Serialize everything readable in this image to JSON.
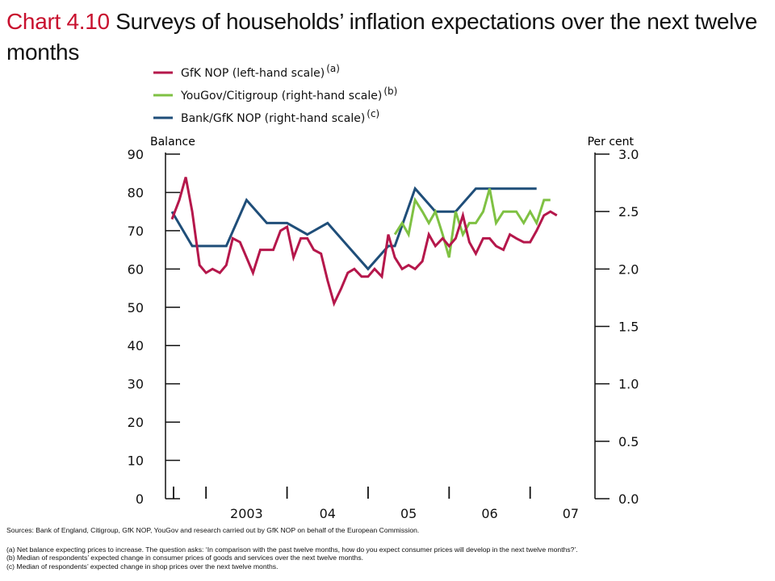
{
  "title": {
    "number": "Chart 4.10",
    "text": "Surveys of households’ inflation expectations over the next twelve months"
  },
  "chart_data": {
    "type": "line",
    "left_axis": {
      "label": "Balance",
      "ylim": [
        0,
        90
      ],
      "ticks": [
        "0",
        "10",
        "20",
        "30",
        "40",
        "50",
        "60",
        "70",
        "80",
        "90"
      ]
    },
    "right_axis": {
      "label": "Per cent",
      "ylim": [
        0,
        3
      ],
      "ticks": [
        "0.0",
        "0.5",
        "1.0",
        "1.5",
        "2.0",
        "2.5",
        "3.0"
      ]
    },
    "x_axis": {
      "tick_labels": [
        "2003",
        "04",
        "05",
        "06",
        "07"
      ],
      "range": [
        2002.5,
        2007.8
      ]
    },
    "grid": false,
    "legend_placement": "top-left",
    "series": [
      {
        "name": "GfK NOP (left-hand scale)",
        "note": "(a)",
        "axis": "left",
        "color": "#b5174b",
        "x": [
          2002.58,
          2002.67,
          2002.75,
          2002.83,
          2002.92,
          2003.0,
          2003.08,
          2003.17,
          2003.25,
          2003.33,
          2003.42,
          2003.5,
          2003.58,
          2003.67,
          2003.75,
          2003.83,
          2003.92,
          2004.0,
          2004.08,
          2004.17,
          2004.25,
          2004.33,
          2004.42,
          2004.5,
          2004.58,
          2004.67,
          2004.75,
          2004.83,
          2004.92,
          2005.0,
          2005.08,
          2005.17,
          2005.25,
          2005.33,
          2005.42,
          2005.5,
          2005.58,
          2005.67,
          2005.75,
          2005.83,
          2005.92,
          2006.0,
          2006.08,
          2006.17,
          2006.25,
          2006.33,
          2006.42,
          2006.5,
          2006.58,
          2006.67,
          2006.75,
          2006.83,
          2006.92,
          2007.0,
          2007.08,
          2007.17,
          2007.25,
          2007.33
        ],
        "values": [
          73,
          78,
          84,
          75,
          61,
          59,
          60,
          59,
          61,
          68,
          67,
          63,
          59,
          65,
          65,
          65,
          70,
          71,
          63,
          68,
          68,
          65,
          64,
          57,
          51,
          55,
          59,
          60,
          58,
          58,
          60,
          58,
          69,
          63,
          60,
          61,
          60,
          62,
          69,
          66,
          68,
          66,
          68,
          74,
          67,
          64,
          68,
          68,
          66,
          65,
          69,
          68,
          67,
          67,
          70,
          74,
          75,
          74
        ]
      },
      {
        "name": "YouGov/Citigroup (right-hand scale)",
        "note": "(b)",
        "axis": "right",
        "color": "#7fc143",
        "x": [
          2005.33,
          2005.42,
          2005.5,
          2005.58,
          2005.67,
          2005.75,
          2005.83,
          2005.92,
          2006.0,
          2006.08,
          2006.17,
          2006.25,
          2006.33,
          2006.42,
          2006.5,
          2006.58,
          2006.67,
          2006.75,
          2006.83,
          2006.92,
          2007.0,
          2007.08,
          2007.17,
          2007.25,
          2007.33
        ],
        "values": [
          2.3,
          2.4,
          2.3,
          2.6,
          2.5,
          2.4,
          2.5,
          2.3,
          2.1,
          2.5,
          2.3,
          2.4,
          2.4,
          2.5,
          2.7,
          2.4,
          2.5,
          2.5,
          2.5,
          2.4,
          2.5,
          2.4,
          2.6,
          2.6,
          null
        ]
      },
      {
        "name": "Bank/GfK NOP (right-hand scale)",
        "note": "(c)",
        "axis": "right",
        "color": "#1f4e79",
        "x": [
          2002.58,
          2002.83,
          2003.0,
          2003.25,
          2003.5,
          2003.75,
          2004.0,
          2004.25,
          2004.5,
          2004.75,
          2005.0,
          2005.25,
          2005.33,
          2005.58,
          2005.83,
          2006.08,
          2006.33,
          2006.58,
          2006.83,
          2007.08
        ],
        "values": [
          2.5,
          2.2,
          2.2,
          2.2,
          2.6,
          2.4,
          2.4,
          2.3,
          2.4,
          2.2,
          2.0,
          2.2,
          2.2,
          2.7,
          2.5,
          2.5,
          2.7,
          2.7,
          2.7,
          2.7
        ]
      }
    ]
  },
  "sources": "Sources: Bank of England, Citigroup, GfK NOP, YouGov and research carried out by GfK NOP on behalf of the European Commission.",
  "footnotes": [
    "(a)  Net balance expecting prices to increase.  The question asks:  ‘In comparison with the past twelve months, how do you expect consumer prices will develop in the next twelve months?’.",
    "(b)  Median of respondents’ expected change in consumer prices of goods and services over the next twelve months.",
    "(c)  Median of respondents’ expected change in shop prices over the next twelve months."
  ]
}
